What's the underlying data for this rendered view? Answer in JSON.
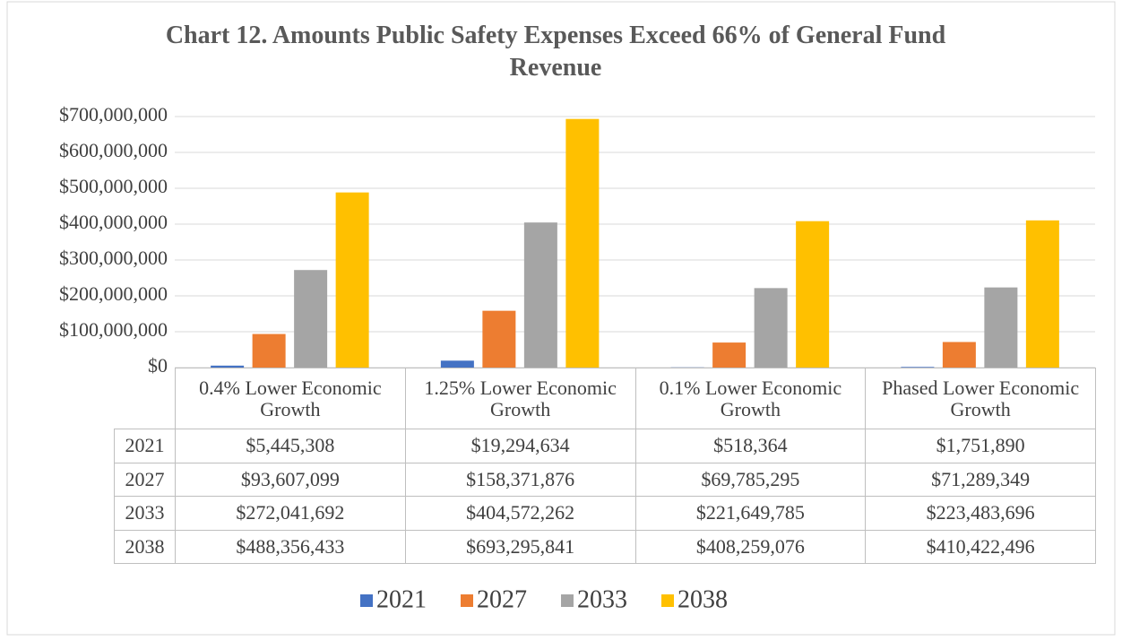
{
  "chart_data": {
    "type": "bar",
    "title": "Chart 12. Amounts Public Safety Expenses Exceed 66% of General Fund Revenue",
    "categories": [
      "0.4% Lower Economic Growth",
      "1.25% Lower Economic Growth",
      "0.1% Lower Economic Growth",
      "Phased Lower Economic Growth"
    ],
    "series": [
      {
        "name": "2021",
        "color": "#4472c4",
        "values": [
          5445308,
          19294634,
          518364,
          1751890
        ],
        "value_labels": [
          "$5,445,308",
          "$19,294,634",
          "$518,364",
          "$1,751,890"
        ]
      },
      {
        "name": "2027",
        "color": "#ed7d31",
        "values": [
          93607099,
          158371876,
          69785295,
          71289349
        ],
        "value_labels": [
          "$93,607,099",
          "$158,371,876",
          "$69,785,295",
          "$71,289,349"
        ]
      },
      {
        "name": "2033",
        "color": "#a5a5a5",
        "values": [
          272041692,
          404572262,
          221649785,
          223483696
        ],
        "value_labels": [
          "$272,041,692",
          "$404,572,262",
          "$221,649,785",
          "$223,483,696"
        ]
      },
      {
        "name": "2038",
        "color": "#ffc000",
        "values": [
          488356433,
          693295841,
          408259076,
          410422496
        ],
        "value_labels": [
          "$488,356,433",
          "$693,295,841",
          "$408,259,076",
          "$410,422,496"
        ]
      }
    ],
    "ylim": [
      0,
      700000000
    ],
    "yticks": [
      {
        "value": 0,
        "label": "$0"
      },
      {
        "value": 100000000,
        "label": "$100,000,000"
      },
      {
        "value": 200000000,
        "label": "$200,000,000"
      },
      {
        "value": 300000000,
        "label": "$300,000,000"
      },
      {
        "value": 400000000,
        "label": "$400,000,000"
      },
      {
        "value": 500000000,
        "label": "$500,000,000"
      },
      {
        "value": 600000000,
        "label": "$600,000,000"
      },
      {
        "value": 700000000,
        "label": "$700,000,000"
      }
    ],
    "grid": true,
    "legend": "bottom"
  }
}
